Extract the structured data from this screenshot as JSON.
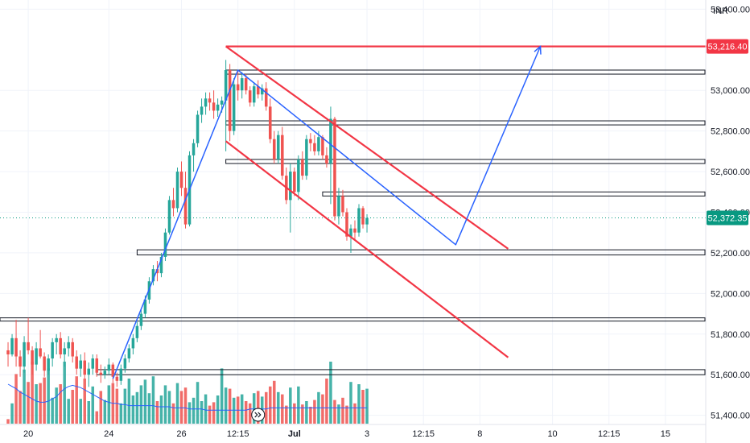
{
  "currency": "INR",
  "colors": {
    "up": "#26a69a",
    "down": "#ef5350",
    "drawing_red": "#f23645",
    "drawing_blue": "#2962ff",
    "ma_line": "#2962ff",
    "last_price_bg": "#089981",
    "marked_price_bg": "#f23645",
    "grid": "#f0f3fa",
    "axis_text": "#131722"
  },
  "icons": {
    "time_axis_badge": "arrow-right-double-icon"
  },
  "chart_data": {
    "type": "candlestick",
    "y_axis": {
      "side": "right",
      "ticks": [
        "53,400.00",
        "53,000.00",
        "52,800.00",
        "52,600.00",
        "52,400.00",
        "52,200.00",
        "52,000.00",
        "51,800.00",
        "51,600.00",
        "51,400.00"
      ],
      "tick_values": [
        53400,
        53000,
        52800,
        52600,
        52400,
        52200,
        52000,
        51800,
        51600,
        51400
      ],
      "ylim": [
        51355,
        53445
      ]
    },
    "x_axis": {
      "ticks": [
        "20",
        "24",
        "26",
        "12:15",
        "Jul",
        "3",
        "12:15",
        "8",
        "10",
        "12:15",
        "15"
      ],
      "tick_bars": [
        5,
        25,
        43,
        57,
        71,
        89,
        103,
        117,
        135,
        149,
        163
      ],
      "bold": [
        "Jul"
      ],
      "bar_range": [
        -2,
        173
      ]
    },
    "price_labels": [
      {
        "text": "53,216.40",
        "value": 53216.4,
        "kind": "marked"
      },
      {
        "text": "52,372.35",
        "value": 52372.35,
        "kind": "last"
      }
    ],
    "last_price": 52372.35,
    "candles_ohlc": [
      [
        51720,
        51760,
        51640,
        51700
      ],
      [
        51700,
        51800,
        51690,
        51780
      ],
      [
        51780,
        51870,
        51640,
        51690
      ],
      [
        51690,
        51720,
        51590,
        51640
      ],
      [
        51640,
        51790,
        51610,
        51760
      ],
      [
        51760,
        51880,
        51700,
        51720
      ],
      [
        51720,
        51740,
        51600,
        51650
      ],
      [
        51650,
        51760,
        51620,
        51730
      ],
      [
        51730,
        51820,
        51680,
        51690
      ],
      [
        51690,
        51710,
        51590,
        51620
      ],
      [
        51620,
        51700,
        51600,
        51680
      ],
      [
        51680,
        51780,
        51640,
        51760
      ],
      [
        51760,
        51800,
        51700,
        51780
      ],
      [
        51780,
        51810,
        51680,
        51700
      ],
      [
        51700,
        51760,
        51640,
        51730
      ],
      [
        51730,
        51790,
        51690,
        51760
      ],
      [
        51760,
        51780,
        51660,
        51690
      ],
      [
        51690,
        51720,
        51600,
        51630
      ],
      [
        51630,
        51700,
        51590,
        51670
      ],
      [
        51670,
        51710,
        51580,
        51600
      ],
      [
        51600,
        51660,
        51540,
        51630
      ],
      [
        51630,
        51700,
        51600,
        51680
      ],
      [
        51680,
        51700,
        51590,
        51610
      ],
      [
        51610,
        51650,
        51560,
        51600
      ],
      [
        51600,
        51640,
        51580,
        51620
      ],
      [
        51620,
        51680,
        51600,
        51650
      ],
      [
        51650,
        51660,
        51560,
        51590
      ],
      [
        51590,
        51610,
        51540,
        51570
      ],
      [
        51570,
        51650,
        51550,
        51630
      ],
      [
        51630,
        51700,
        51610,
        51680
      ],
      [
        51680,
        51750,
        51660,
        51730
      ],
      [
        51730,
        51800,
        51700,
        51780
      ],
      [
        51780,
        51860,
        51760,
        51840
      ],
      [
        51840,
        51920,
        51820,
        51900
      ],
      [
        51900,
        51990,
        51880,
        51970
      ],
      [
        51970,
        52080,
        51950,
        52060
      ],
      [
        52060,
        52140,
        52040,
        52120
      ],
      [
        52120,
        52160,
        52060,
        52100
      ],
      [
        52100,
        52200,
        52080,
        52180
      ],
      [
        52180,
        52320,
        52160,
        52300
      ],
      [
        52300,
        52480,
        52290,
        52460
      ],
      [
        52460,
        52520,
        52380,
        52420
      ],
      [
        52420,
        52620,
        52400,
        52600
      ],
      [
        52600,
        52650,
        52480,
        52520
      ],
      [
        52520,
        52600,
        52320,
        52340
      ],
      [
        52340,
        52700,
        52330,
        52680
      ],
      [
        52680,
        52760,
        52600,
        52740
      ],
      [
        52740,
        52900,
        52720,
        52880
      ],
      [
        52880,
        52960,
        52840,
        52920
      ],
      [
        52920,
        52990,
        52880,
        52960
      ],
      [
        52960,
        52990,
        52900,
        52940
      ],
      [
        52940,
        53000,
        52860,
        52900
      ],
      [
        52900,
        52960,
        52870,
        52930
      ],
      [
        52930,
        52970,
        52890,
        52950
      ],
      [
        52950,
        53150,
        52700,
        53100
      ],
      [
        53100,
        53130,
        52750,
        52800
      ],
      [
        52800,
        53060,
        52780,
        53030
      ],
      [
        53030,
        53100,
        52950,
        53000
      ],
      [
        53000,
        53090,
        52960,
        53060
      ],
      [
        53060,
        53080,
        52980,
        53000
      ],
      [
        53000,
        53020,
        52920,
        52940
      ],
      [
        52940,
        53040,
        52920,
        53020
      ],
      [
        53020,
        53050,
        52960,
        52980
      ],
      [
        52980,
        53030,
        52950,
        53010
      ],
      [
        53010,
        53040,
        52900,
        52920
      ],
      [
        52920,
        52960,
        52740,
        52760
      ],
      [
        52760,
        52800,
        52640,
        52660
      ],
      [
        52660,
        52800,
        52640,
        52780
      ],
      [
        52780,
        52820,
        52560,
        52580
      ],
      [
        52580,
        52620,
        52440,
        52460
      ],
      [
        52460,
        52640,
        52300,
        52600
      ],
      [
        52600,
        52620,
        52480,
        52500
      ],
      [
        52500,
        52680,
        52460,
        52660
      ],
      [
        52660,
        52700,
        52560,
        52580
      ],
      [
        52580,
        52780,
        52560,
        52760
      ],
      [
        52760,
        52790,
        52700,
        52740
      ],
      [
        52740,
        52780,
        52680,
        52700
      ],
      [
        52700,
        52800,
        52680,
        52770
      ],
      [
        52770,
        52780,
        52660,
        52680
      ],
      [
        52680,
        52720,
        52620,
        52640
      ],
      [
        52640,
        52920,
        52440,
        52860
      ],
      [
        52860,
        52870,
        52360,
        52380
      ],
      [
        52380,
        52520,
        52340,
        52480
      ],
      [
        52480,
        52510,
        52380,
        52400
      ],
      [
        52400,
        52420,
        52260,
        52280
      ],
      [
        52280,
        52340,
        52200,
        52320
      ],
      [
        52320,
        52360,
        52260,
        52300
      ],
      [
        52300,
        52440,
        52280,
        52420
      ],
      [
        52420,
        52430,
        52320,
        52340
      ],
      [
        52340,
        52390,
        52300,
        52372.35
      ]
    ],
    "volume": [
      4,
      18,
      44,
      29,
      48,
      37,
      55,
      35,
      36,
      41,
      49,
      23,
      32,
      35,
      55,
      22,
      30,
      42,
      22,
      40,
      20,
      33,
      11,
      29,
      21,
      34,
      36,
      31,
      18,
      31,
      40,
      25,
      28,
      34,
      39,
      27,
      42,
      20,
      25,
      34,
      29,
      18,
      36,
      29,
      32,
      19,
      23,
      37,
      20,
      26,
      16,
      19,
      25,
      49,
      32,
      31,
      23,
      24,
      26,
      20,
      18,
      27,
      29,
      24,
      28,
      33,
      38,
      28,
      26,
      16,
      32,
      18,
      33,
      17,
      20,
      15,
      21,
      28,
      26,
      40,
      55,
      21,
      17,
      23,
      16,
      37,
      18,
      35,
      30,
      31
    ],
    "volume_ma": [
      35,
      33,
      31,
      28,
      26,
      24,
      22,
      20,
      19,
      19,
      20,
      22,
      24,
      28,
      31,
      33,
      34,
      33,
      32,
      30,
      28,
      26,
      24,
      22,
      20,
      19,
      18,
      18,
      17,
      17,
      16,
      16,
      16,
      16,
      16,
      16,
      16,
      15,
      15,
      15,
      15,
      14,
      14,
      14,
      14,
      13,
      13,
      13,
      13,
      12,
      12,
      12,
      12,
      12,
      12,
      12,
      12,
      12,
      12,
      12,
      13,
      13,
      13,
      13,
      13,
      14,
      14,
      14,
      14,
      14,
      14,
      14,
      14,
      14,
      14,
      14,
      14,
      14,
      14,
      14,
      14,
      14,
      14,
      14,
      14,
      14,
      14,
      14,
      14,
      14
    ],
    "support_zones": [
      {
        "from_bar": 54,
        "to_bar": 178,
        "top": 53100,
        "bottom": 53080
      },
      {
        "from_bar": 54,
        "to_bar": 178,
        "top": 52850,
        "bottom": 52830
      },
      {
        "from_bar": 54,
        "to_bar": 178,
        "top": 52660,
        "bottom": 52640
      },
      {
        "from_bar": 78,
        "to_bar": 178,
        "top": 52500,
        "bottom": 52480
      },
      {
        "from_bar": 32,
        "to_bar": 178,
        "top": 52215,
        "bottom": 52190
      },
      {
        "from_bar": -2,
        "to_bar": 178,
        "top": 51880,
        "bottom": 51865
      },
      {
        "from_bar": 22,
        "to_bar": 178,
        "top": 51625,
        "bottom": 51600
      }
    ],
    "drawings": [
      {
        "kind": "trendline",
        "color": "red",
        "points": [
          [
            54,
            53216.4
          ],
          [
            178,
            53216.4
          ]
        ]
      },
      {
        "kind": "trendline",
        "color": "red",
        "points": [
          [
            54,
            53216.4
          ],
          [
            124,
            52220
          ]
        ]
      },
      {
        "kind": "trendline",
        "color": "red",
        "points": [
          [
            54,
            52750
          ],
          [
            124,
            51685
          ]
        ]
      },
      {
        "kind": "polyline",
        "color": "blue",
        "points": [
          [
            26,
            51580
          ],
          [
            57,
            53100
          ],
          [
            111,
            52240
          ],
          [
            132,
            53216.4
          ]
        ]
      }
    ]
  }
}
